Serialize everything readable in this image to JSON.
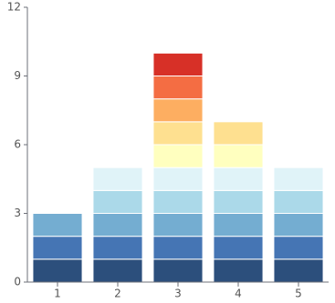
{
  "chart_data": {
    "type": "stacked-bar",
    "categories": [
      "1",
      "2",
      "3",
      "4",
      "5"
    ],
    "series": [
      {
        "color": "#2c4f7c",
        "values": [
          1,
          1,
          1,
          1,
          1
        ]
      },
      {
        "color": "#4575b4",
        "values": [
          1,
          1,
          1,
          1,
          1
        ]
      },
      {
        "color": "#74add1",
        "values": [
          1,
          1,
          1,
          1,
          1
        ]
      },
      {
        "color": "#abd9e9",
        "values": [
          0,
          1,
          1,
          1,
          1
        ]
      },
      {
        "color": "#e0f3f8",
        "values": [
          0,
          1,
          1,
          1,
          1
        ]
      },
      {
        "color": "#ffffbf",
        "values": [
          0,
          0,
          1,
          1,
          0
        ]
      },
      {
        "color": "#fee090",
        "values": [
          0,
          0,
          1,
          1,
          0
        ]
      },
      {
        "color": "#fdae61",
        "values": [
          0,
          0,
          1,
          0,
          0
        ]
      },
      {
        "color": "#f46d43",
        "values": [
          0,
          0,
          1,
          0,
          0
        ]
      },
      {
        "color": "#d73027",
        "values": [
          0,
          0,
          1,
          0,
          0
        ]
      }
    ],
    "ylim": [
      0,
      12
    ],
    "yticks": [
      0,
      3,
      6,
      9,
      12
    ],
    "grid": false
  }
}
